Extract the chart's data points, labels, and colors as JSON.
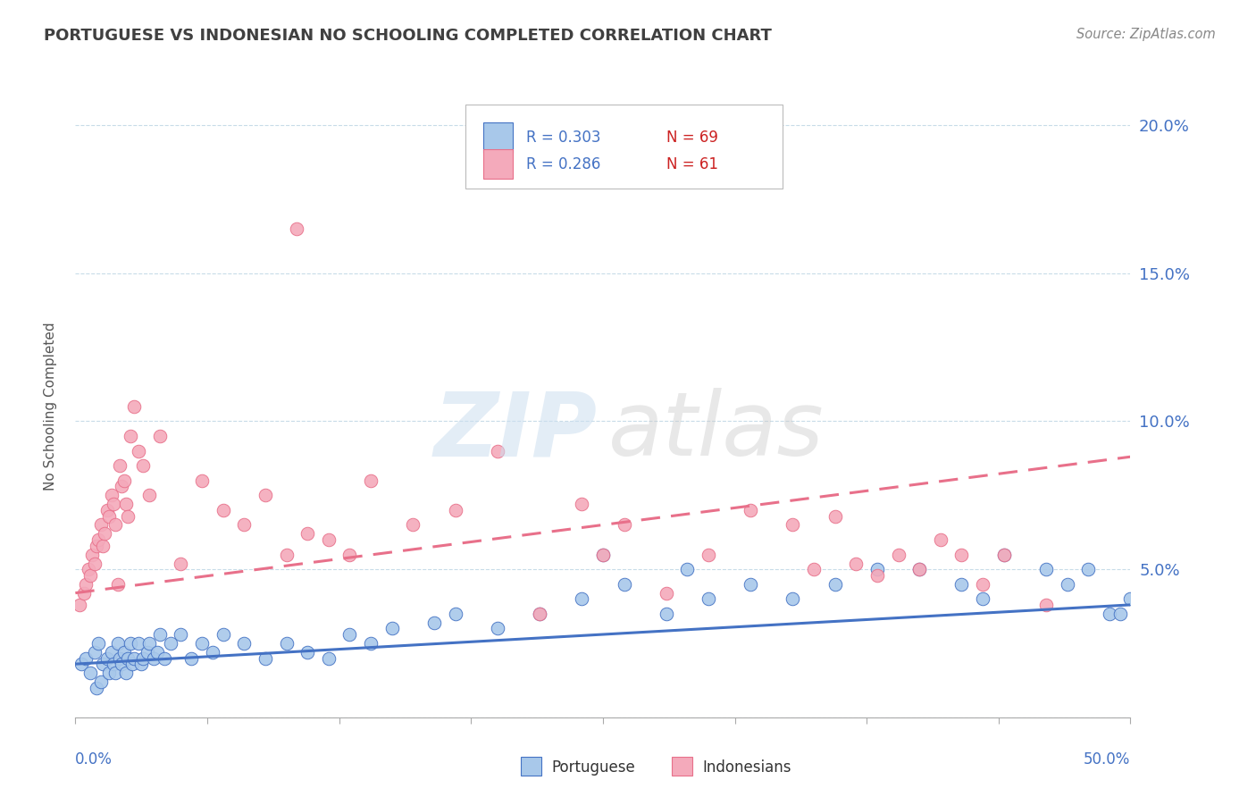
{
  "title": "PORTUGUESE VS INDONESIAN NO SCHOOLING COMPLETED CORRELATION CHART",
  "source": "Source: ZipAtlas.com",
  "ylabel": "No Schooling Completed",
  "xlim": [
    0.0,
    50.0
  ],
  "ylim": [
    0.0,
    21.0
  ],
  "yticks_right": [
    0.0,
    5.0,
    10.0,
    15.0,
    20.0
  ],
  "ytick_labels_right": [
    "",
    "5.0%",
    "10.0%",
    "15.0%",
    "20.0%"
  ],
  "legend_r1": "R = 0.303",
  "legend_n1": "N = 69",
  "legend_r2": "R = 0.286",
  "legend_n2": "N = 61",
  "color_portuguese": "#a8c8ea",
  "color_indonesian": "#f4aabb",
  "color_line_portuguese": "#4472c4",
  "color_line_indonesian": "#e8708a",
  "color_title": "#404040",
  "color_source": "#888888",
  "color_axis_blue": "#4472c4",
  "color_grid": "#c8dce8",
  "background_color": "#ffffff",
  "trendline_portuguese_y0": 1.8,
  "trendline_portuguese_y1": 3.8,
  "trendline_indonesian_y0": 4.2,
  "trendline_indonesian_y1": 8.8,
  "portuguese_x": [
    0.3,
    0.5,
    0.7,
    0.9,
    1.0,
    1.1,
    1.2,
    1.3,
    1.5,
    1.6,
    1.7,
    1.8,
    1.9,
    2.0,
    2.1,
    2.2,
    2.3,
    2.4,
    2.5,
    2.6,
    2.7,
    2.8,
    3.0,
    3.1,
    3.2,
    3.4,
    3.5,
    3.7,
    3.9,
    4.0,
    4.2,
    4.5,
    5.0,
    5.5,
    6.0,
    6.5,
    7.0,
    8.0,
    9.0,
    10.0,
    11.0,
    12.0,
    13.0,
    14.0,
    15.0,
    17.0,
    18.0,
    20.0,
    22.0,
    24.0,
    25.0,
    26.0,
    28.0,
    29.0,
    30.0,
    32.0,
    34.0,
    36.0,
    38.0,
    40.0,
    42.0,
    43.0,
    44.0,
    46.0,
    47.0,
    48.0,
    49.0,
    50.0,
    49.5
  ],
  "portuguese_y": [
    1.8,
    2.0,
    1.5,
    2.2,
    1.0,
    2.5,
    1.2,
    1.8,
    2.0,
    1.5,
    2.2,
    1.8,
    1.5,
    2.5,
    2.0,
    1.8,
    2.2,
    1.5,
    2.0,
    2.5,
    1.8,
    2.0,
    2.5,
    1.8,
    2.0,
    2.2,
    2.5,
    2.0,
    2.2,
    2.8,
    2.0,
    2.5,
    2.8,
    2.0,
    2.5,
    2.2,
    2.8,
    2.5,
    2.0,
    2.5,
    2.2,
    2.0,
    2.8,
    2.5,
    3.0,
    3.2,
    3.5,
    3.0,
    3.5,
    4.0,
    5.5,
    4.5,
    3.5,
    5.0,
    4.0,
    4.5,
    4.0,
    4.5,
    5.0,
    5.0,
    4.5,
    4.0,
    5.5,
    5.0,
    4.5,
    5.0,
    3.5,
    4.0,
    3.5
  ],
  "indonesian_x": [
    0.2,
    0.4,
    0.5,
    0.6,
    0.7,
    0.8,
    0.9,
    1.0,
    1.1,
    1.2,
    1.3,
    1.4,
    1.5,
    1.6,
    1.7,
    1.8,
    1.9,
    2.0,
    2.1,
    2.2,
    2.3,
    2.4,
    2.5,
    2.6,
    2.8,
    3.0,
    3.2,
    3.5,
    4.0,
    5.0,
    6.0,
    7.0,
    8.0,
    9.0,
    10.0,
    11.0,
    12.0,
    13.0,
    14.0,
    16.0,
    18.0,
    20.0,
    22.0,
    24.0,
    25.0,
    26.0,
    28.0,
    30.0,
    32.0,
    34.0,
    35.0,
    36.0,
    37.0,
    38.0,
    39.0,
    40.0,
    41.0,
    42.0,
    43.0,
    44.0,
    46.0
  ],
  "indonesian_y": [
    3.8,
    4.2,
    4.5,
    5.0,
    4.8,
    5.5,
    5.2,
    5.8,
    6.0,
    6.5,
    5.8,
    6.2,
    7.0,
    6.8,
    7.5,
    7.2,
    6.5,
    4.5,
    8.5,
    7.8,
    8.0,
    7.2,
    6.8,
    9.5,
    10.5,
    9.0,
    8.5,
    7.5,
    9.5,
    5.2,
    8.0,
    7.0,
    6.5,
    7.5,
    5.5,
    6.2,
    6.0,
    5.5,
    8.0,
    6.5,
    7.0,
    9.0,
    3.5,
    7.2,
    5.5,
    6.5,
    4.2,
    5.5,
    7.0,
    6.5,
    5.0,
    6.8,
    5.2,
    4.8,
    5.5,
    5.0,
    6.0,
    5.5,
    4.5,
    5.5,
    3.8
  ],
  "indonesian_outlier_x": 10.5,
  "indonesian_outlier_y": 16.5
}
